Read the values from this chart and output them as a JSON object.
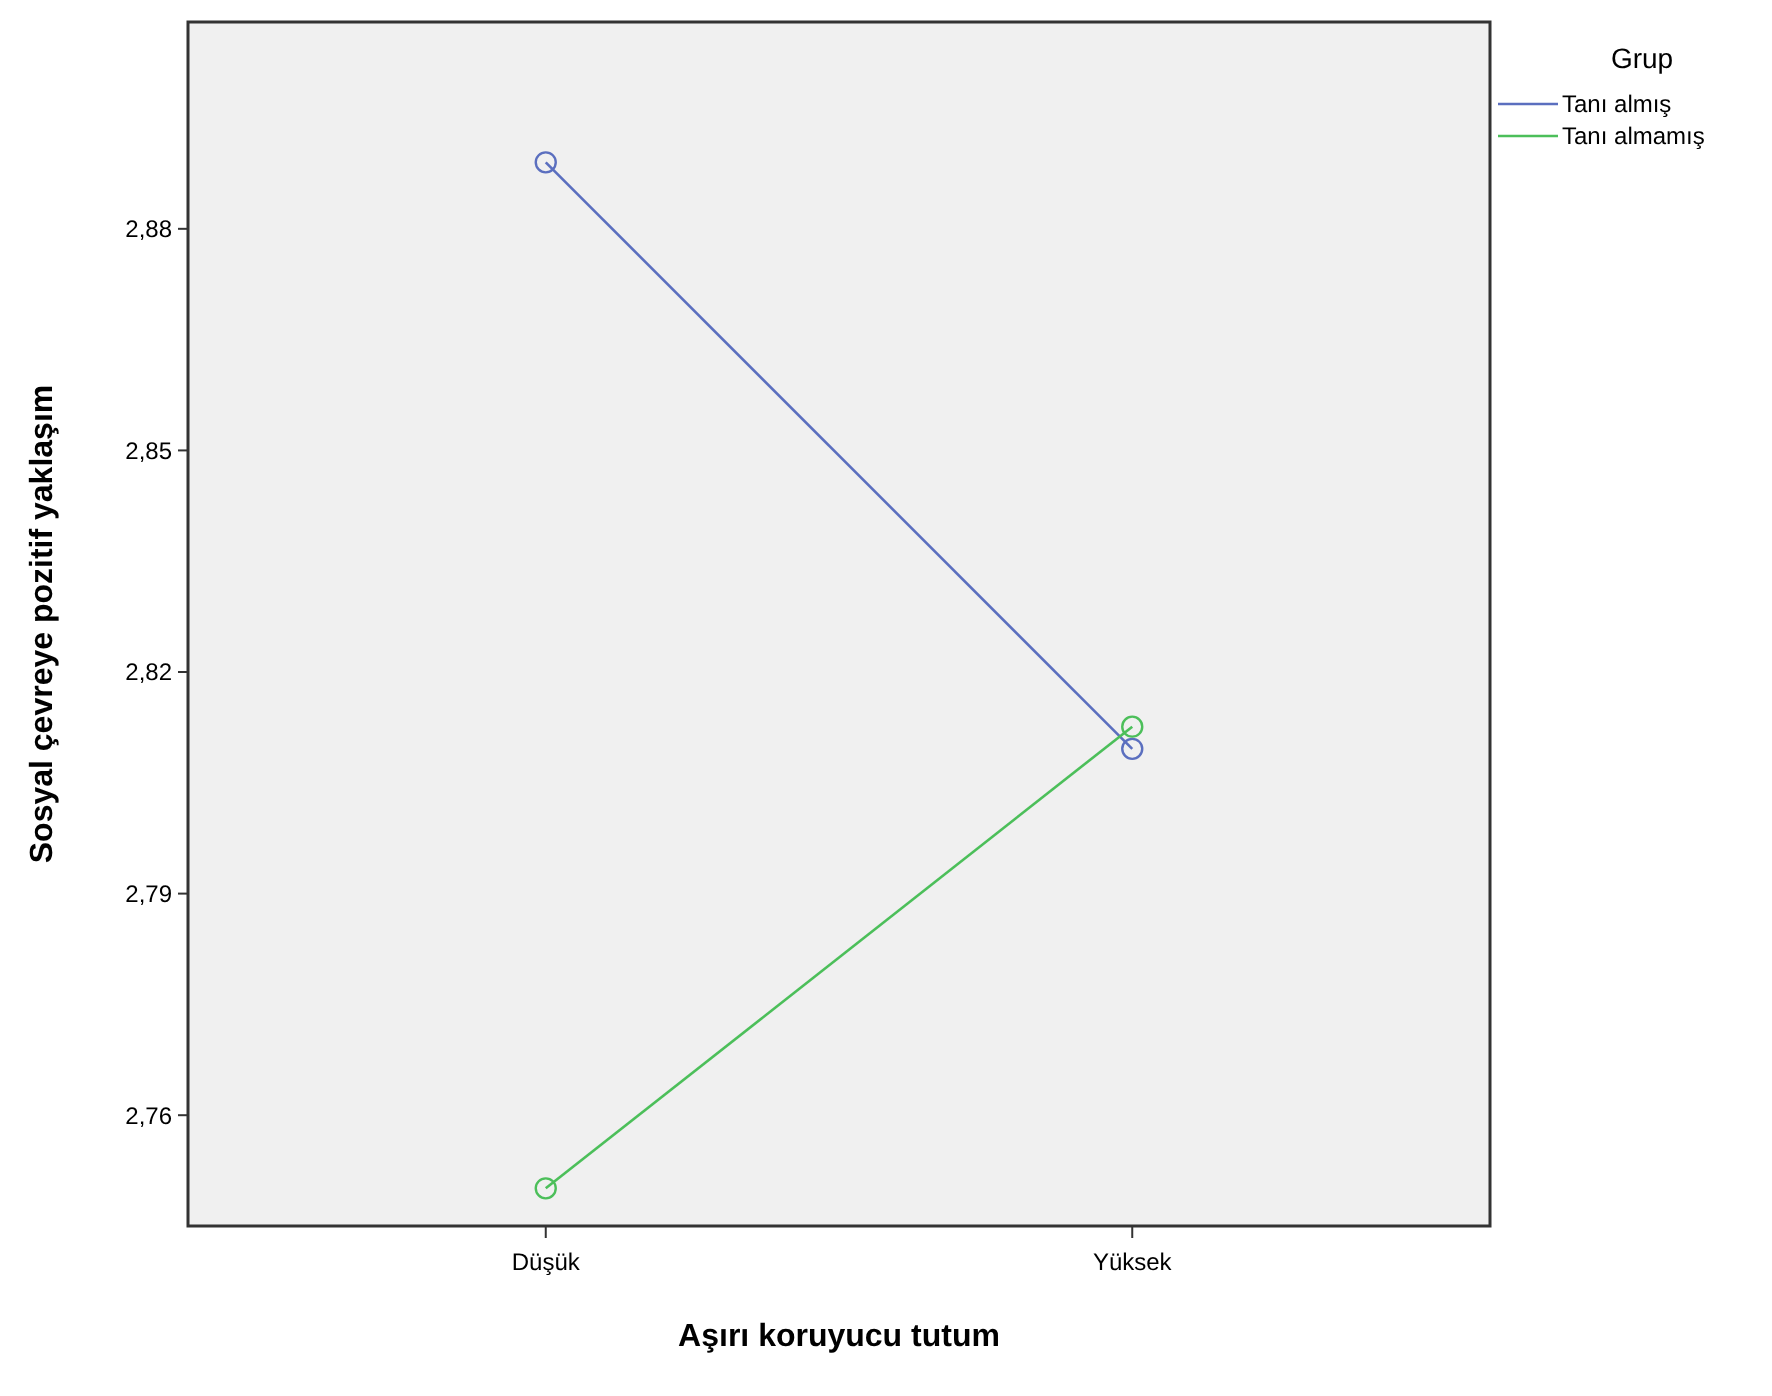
{
  "chart_data": {
    "type": "line",
    "xlabel": "Aşırı koruyucu tutum",
    "ylabel": "Sosyal çevreye pozitif yaklaşım",
    "legend_title": "Grup",
    "categories": [
      "Düşük",
      "Yüksek"
    ],
    "series": [
      {
        "name": "Tanı almış",
        "color": "#5b6fbf",
        "values": [
          2.889,
          2.8096
        ]
      },
      {
        "name": "Tanı almamış",
        "color": "#4cbf5a",
        "values": [
          2.7501,
          2.8126
        ]
      }
    ],
    "ylim": [
      2.745,
      2.908
    ],
    "yticks": [
      {
        "value": 2.76,
        "label": "2,76"
      },
      {
        "value": 2.79,
        "label": "2,79"
      },
      {
        "value": 2.82,
        "label": "2,82"
      },
      {
        "value": 2.85,
        "label": "2,85"
      },
      {
        "value": 2.88,
        "label": "2,88"
      }
    ],
    "grid": false,
    "legend": "top right",
    "marker": "circle",
    "line_style": "solid"
  }
}
